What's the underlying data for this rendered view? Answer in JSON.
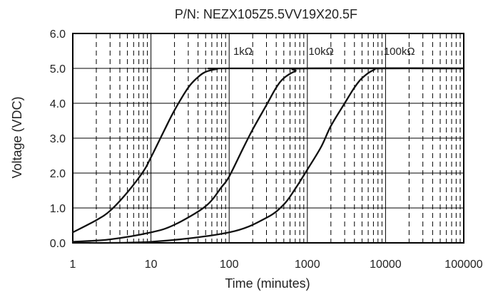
{
  "chart_data": {
    "type": "line",
    "title": "P/N: NEZX105Z5.5VV19X20.5F",
    "xlabel": "Time (minutes)",
    "ylabel": "Voltage (VDC)",
    "xscale": "log",
    "xlim": [
      1,
      100000
    ],
    "ylim": [
      0,
      6
    ],
    "grid": true,
    "x_tick_labels": [
      "1",
      "10",
      "100",
      "1000",
      "10000",
      "100000"
    ],
    "y_tick_labels": [
      "0.0",
      "1.0",
      "2.0",
      "3.0",
      "4.0",
      "5.0",
      "6.0"
    ],
    "series": [
      {
        "name": "1kΩ",
        "x": [
          1,
          2,
          3,
          5,
          8,
          10,
          15,
          20,
          30,
          40,
          50,
          70,
          100,
          100000
        ],
        "y": [
          0.3,
          0.65,
          0.92,
          1.45,
          2.05,
          2.45,
          3.25,
          3.8,
          4.45,
          4.75,
          4.9,
          4.98,
          5.0,
          5.0
        ]
      },
      {
        "name": "10kΩ",
        "x": [
          1,
          3,
          10,
          20,
          50,
          80,
          100,
          150,
          200,
          300,
          400,
          500,
          700,
          1000,
          100000
        ],
        "y": [
          0.03,
          0.1,
          0.3,
          0.52,
          1.05,
          1.6,
          1.9,
          2.7,
          3.25,
          3.95,
          4.45,
          4.72,
          4.92,
          5.0,
          5.0
        ]
      },
      {
        "name": "100kΩ",
        "x": [
          1,
          10,
          100,
          300,
          500,
          700,
          1000,
          1500,
          2000,
          3000,
          4000,
          5000,
          7000,
          10000,
          100000
        ],
        "y": [
          0.0,
          0.03,
          0.3,
          0.72,
          1.1,
          1.55,
          2.1,
          2.75,
          3.35,
          4.0,
          4.45,
          4.72,
          4.95,
          5.0,
          5.0
        ]
      }
    ]
  }
}
